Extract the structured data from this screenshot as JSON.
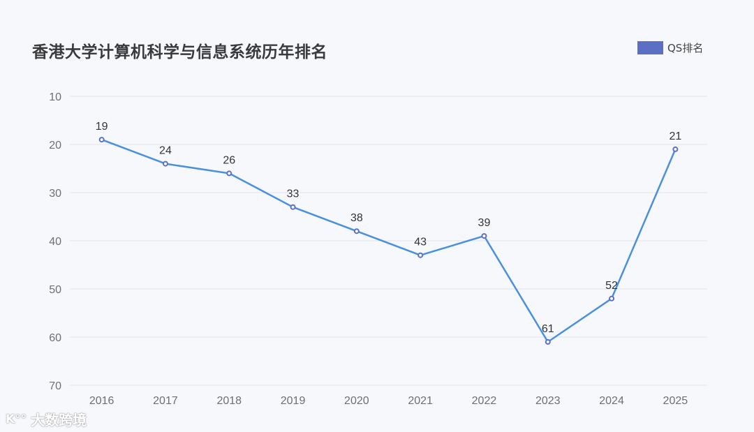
{
  "title": "香港大学计算机科学与信息系统历年排名",
  "legend": {
    "label": "QS排名",
    "color": "#5b6fc4"
  },
  "watermark": {
    "text": "大数跨境",
    "logo": "k100-logo-icon"
  },
  "chart_data": {
    "type": "line",
    "title": "香港大学计算机科学与信息系统历年排名",
    "xlabel": "",
    "ylabel": "",
    "categories": [
      "2016",
      "2017",
      "2018",
      "2019",
      "2020",
      "2021",
      "2022",
      "2023",
      "2024",
      "2025"
    ],
    "series": [
      {
        "name": "QS排名",
        "values": [
          19,
          24,
          26,
          33,
          38,
          43,
          39,
          61,
          52,
          21
        ],
        "color": "#4a90e2",
        "marker_color": "#5b6fc4"
      }
    ],
    "y_ticks": [
      10,
      20,
      30,
      40,
      50,
      60,
      70
    ],
    "ylim": [
      10,
      70
    ],
    "y_inverted": true,
    "grid": true,
    "legend_position": "top-right",
    "data_labels": true
  }
}
